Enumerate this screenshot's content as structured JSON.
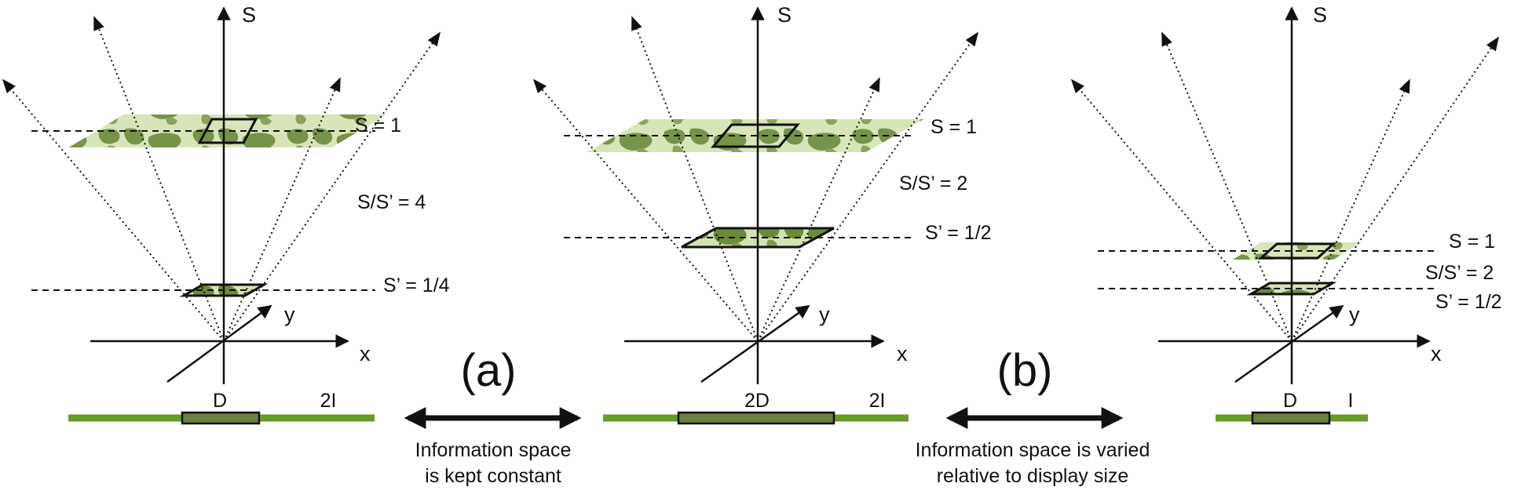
{
  "colors": {
    "map_land": "#6b8a3a",
    "map_sea": "#d4e3b3",
    "bar_green": "#6a9a2a",
    "bar_box": "#6b7f3f",
    "stroke": "#111111"
  },
  "panels": [
    {
      "axis_s": "S",
      "axis_x": "x",
      "axis_y": "y",
      "upper_plane_label": "S =  1",
      "ratio_label": "S/S’ =  4",
      "lower_plane_label": "S’ = 1/4",
      "display_label": "D",
      "info_label": "2I"
    },
    {
      "axis_s": "S",
      "axis_x": "x",
      "axis_y": "y",
      "upper_plane_label": "S =  1",
      "ratio_label": "S/S’ =  2",
      "lower_plane_label": "S’ = 1/2",
      "display_label": "2D",
      "info_label": "2I"
    },
    {
      "axis_s": "S",
      "axis_x": "x",
      "axis_y": "y",
      "upper_plane_label": "S =  1",
      "ratio_label": "S/S’ =  2",
      "lower_plane_label": "S’ = 1/2",
      "display_label": "D",
      "info_label": "I"
    }
  ],
  "comparisons": [
    {
      "panel_label": "(a)",
      "caption_line1": "Information space",
      "caption_line2": "is kept constant"
    },
    {
      "panel_label": "(b)",
      "caption_line1": "Information space is varied",
      "caption_line2": "relative to display size"
    }
  ]
}
